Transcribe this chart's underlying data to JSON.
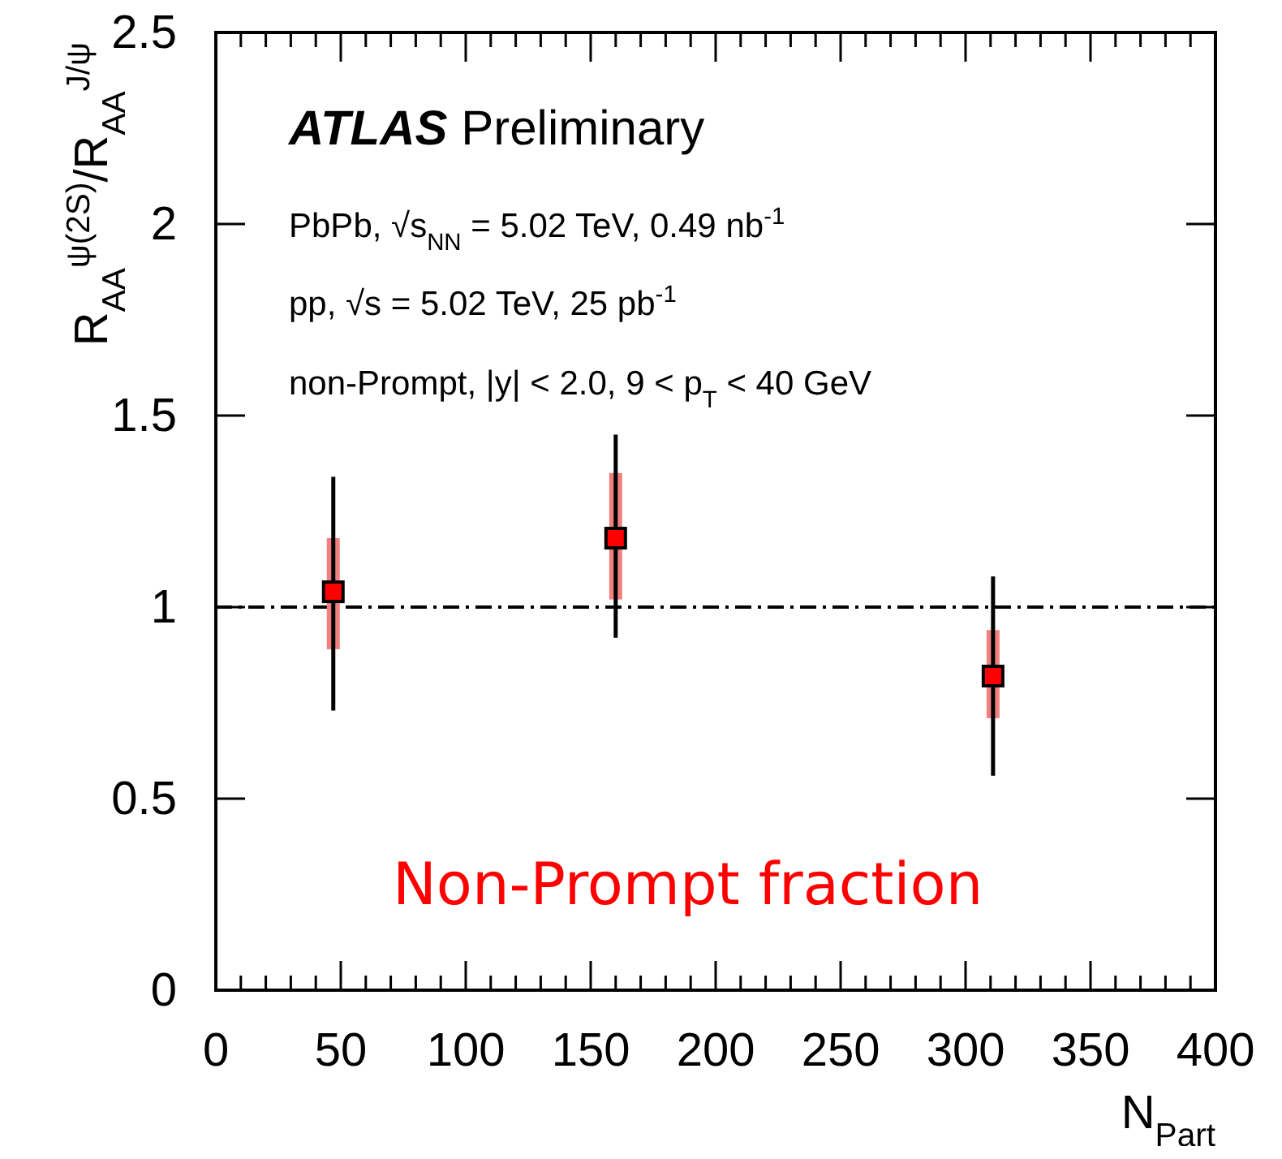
{
  "chart_data": {
    "type": "scatter",
    "xlabel": "N$_{Part}$",
    "ylabel": "R$_{AA}$$^{ψ(2S)}$/R$_{AA}$$^{J/ψ}$",
    "x": [
      47,
      160,
      311
    ],
    "series": [
      {
        "type": "bar",
        "color": "#f08080",
        "values": [
          0.29,
          0.33,
          0.23
        ],
        "base": [
          0.89,
          1.02,
          0.71
        ]
      },
      {
        "color": "#ff0000",
        "values": [
          1.04,
          1.18,
          0.82
        ],
        "errors": [
          [
            0.73,
            1.34
          ],
          [
            0.92,
            1.45
          ],
          [
            0.56,
            1.08
          ]
        ]
      }
    ],
    "marker": "square",
    "xlim": [
      0,
      400
    ],
    "xticks": [
      0,
      50,
      100,
      150,
      200,
      250,
      300,
      350,
      400
    ],
    "ylim": [
      0,
      2.5
    ],
    "yticks": [
      0,
      0.5,
      1,
      1.5,
      2,
      2.5
    ],
    "ref_lines": [
      {
        "axis": "y",
        "value": 1
      }
    ],
    "annotations": [
      "ATLAS Preliminary",
      "PbPb, √s$_{NN}$ = 5.02 TeV, 0.49 nb$^{-1}$",
      "pp, √s = 5.02 TeV, 25 pb$^{-1}$",
      "non-Prompt, |y| < 2.0, 9 < p$_{T}$ < 40 GeV",
      "Non-Prompt fraction"
    ],
    "grid": false
  }
}
